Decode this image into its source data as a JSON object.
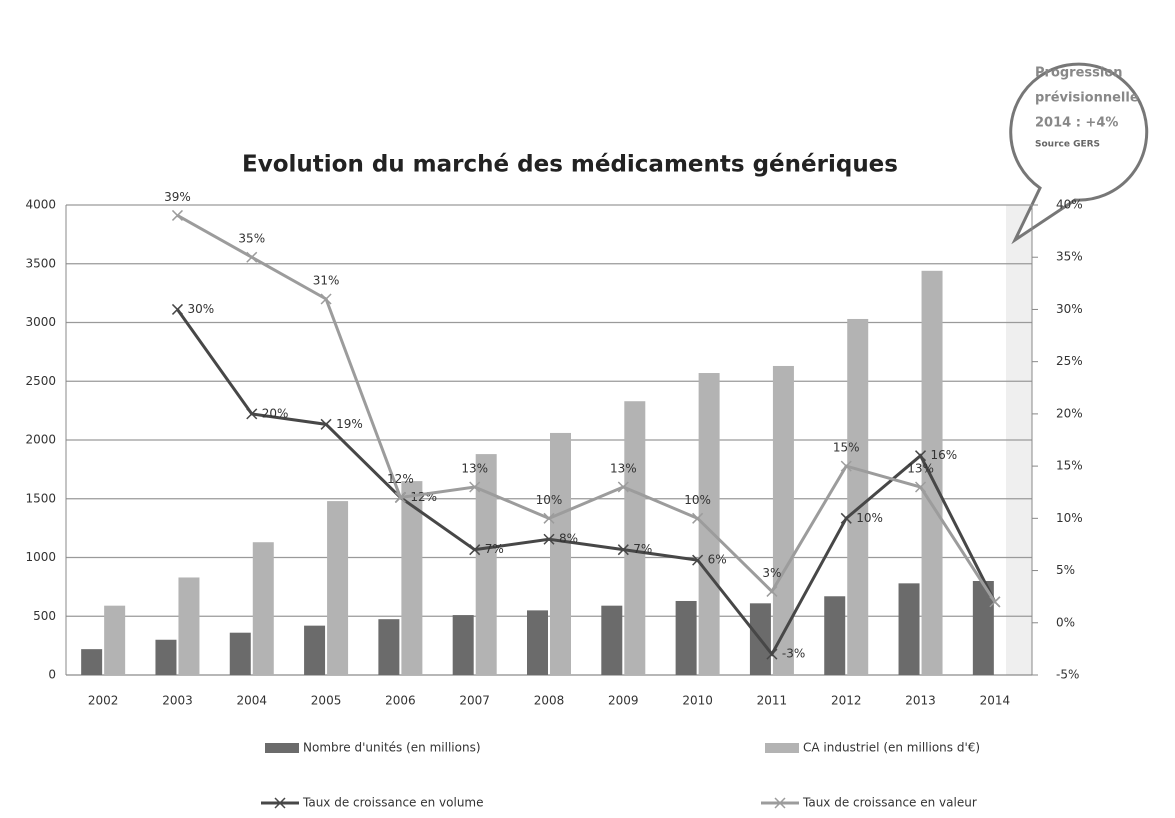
{
  "chart_data": {
    "type": "bar_line",
    "title": "Evolution du marché des médicaments génériques",
    "categories": [
      "2002",
      "2003",
      "2004",
      "2005",
      "2006",
      "2007",
      "2008",
      "2009",
      "2010",
      "2011",
      "2012",
      "2013",
      "2014"
    ],
    "series": [
      {
        "name": "Nombre d'unités (en millions)",
        "type": "bar",
        "color": "#6b6b6b",
        "values": [
          220,
          300,
          360,
          420,
          475,
          510,
          550,
          590,
          630,
          610,
          670,
          780,
          800
        ]
      },
      {
        "name": "CA industriel (en millions d'€)",
        "type": "bar",
        "color": "#b3b3b3",
        "values": [
          590,
          830,
          1130,
          1480,
          1650,
          1880,
          2060,
          2330,
          2570,
          2630,
          3030,
          3440,
          null
        ]
      },
      {
        "name": "Taux de croissance en volume",
        "type": "line",
        "axis": "y2",
        "color": "#474747",
        "values": [
          null,
          30,
          20,
          19,
          12,
          7,
          8,
          7,
          6,
          -3,
          10,
          16,
          2
        ],
        "value_labels": [
          null,
          "30%",
          "20%",
          "19%",
          "12%",
          "7%",
          "8%",
          "7%",
          "6%",
          "-3%",
          "10%",
          "16%",
          null
        ]
      },
      {
        "name": "Taux de croissance en valeur",
        "type": "line",
        "axis": "y2",
        "color": "#9c9c9c",
        "values": [
          null,
          39,
          35,
          31,
          12,
          13,
          10,
          13,
          10,
          3,
          15,
          13,
          2
        ],
        "value_labels": [
          null,
          "39%",
          "35%",
          "31%",
          "12%",
          "13%",
          "10%",
          "13%",
          "10%",
          "3%",
          "15%",
          "13%",
          null
        ]
      }
    ],
    "ylim": [
      0,
      4000
    ],
    "yticks": [
      0,
      500,
      1000,
      1500,
      2000,
      2500,
      3000,
      3500,
      4000
    ],
    "y2lim": [
      -5,
      40
    ],
    "y2ticks": [
      {
        "value": -5,
        "label": "-5%"
      },
      {
        "value": 0,
        "label": "0%"
      },
      {
        "value": 5,
        "label": "5%"
      },
      {
        "value": 10,
        "label": "10%"
      },
      {
        "value": 15,
        "label": "15%"
      },
      {
        "value": 20,
        "label": "20%"
      },
      {
        "value": 25,
        "label": "25%"
      },
      {
        "value": 30,
        "label": "30%"
      },
      {
        "value": 35,
        "label": "35%"
      },
      {
        "value": 40,
        "label": "40%"
      }
    ],
    "grid": true,
    "legend": "bottom",
    "callout": {
      "lines": [
        "Progression",
        "prévisionnelle",
        "2014 : +4%"
      ],
      "source": "Source GERS"
    }
  }
}
